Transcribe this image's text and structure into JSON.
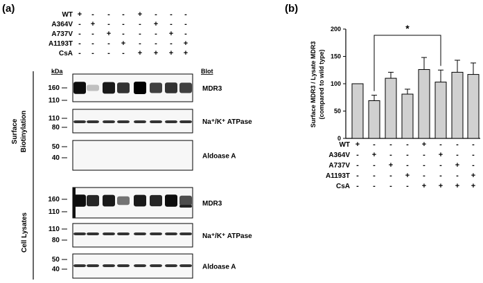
{
  "panel_a": {
    "label": "(a)",
    "treatment_rows": [
      {
        "name": "WT",
        "signs": [
          "+",
          "-",
          "-",
          "-",
          "+",
          "-",
          "-",
          "-"
        ]
      },
      {
        "name": "A364V",
        "signs": [
          "-",
          "+",
          "-",
          "-",
          "-",
          "+",
          "-",
          "-"
        ]
      },
      {
        "name": "A737V",
        "signs": [
          "-",
          "-",
          "+",
          "-",
          "-",
          "-",
          "+",
          "-"
        ]
      },
      {
        "name": "A1193T",
        "signs": [
          "-",
          "-",
          "-",
          "+",
          "-",
          "-",
          "-",
          "+"
        ]
      },
      {
        "name": "CsA",
        "signs": [
          "-",
          "-",
          "-",
          "-",
          "+",
          "+",
          "+",
          "+"
        ]
      }
    ],
    "kda_header": "kDa",
    "blot_header": "Blot",
    "group_surface": "Surface Biotinylation",
    "group_surface_line1": "Surface",
    "group_surface_line2": "Biotinylation",
    "group_lysates": "Cell Lysates",
    "blots": [
      {
        "label": "MDR3",
        "markers": [
          "160",
          "110"
        ],
        "intensities": [
          0.95,
          0.25,
          0.9,
          0.8,
          1.0,
          0.75,
          0.8,
          0.75
        ]
      },
      {
        "label": "Na⁺/K⁺ ATPase",
        "markers": [
          "110",
          "80"
        ],
        "intensities": [
          0.8,
          0.8,
          0.8,
          0.8,
          0.8,
          0.8,
          0.8,
          0.8
        ]
      },
      {
        "label": "Aldoase A",
        "markers": [
          "50",
          "40"
        ],
        "intensities": [
          0,
          0,
          0,
          0,
          0,
          0,
          0,
          0
        ]
      },
      {
        "label": "MDR3",
        "markers": [
          "160",
          "110"
        ],
        "intensities": [
          0.95,
          0.85,
          0.9,
          0.55,
          0.9,
          0.85,
          0.95,
          0.7
        ]
      },
      {
        "label": "Na⁺/K⁺ ATPase",
        "markers": [
          "110",
          "80"
        ],
        "intensities": [
          0.8,
          0.8,
          0.8,
          0.8,
          0.8,
          0.8,
          0.8,
          0.8
        ]
      },
      {
        "label": "Aldoase A",
        "markers": [
          "50",
          "40"
        ],
        "intensities": [
          0.8,
          0.8,
          0.8,
          0.8,
          0.8,
          0.8,
          0.8,
          0.8
        ]
      }
    ]
  },
  "panel_b": {
    "label": "(b)",
    "significance_marker": "*"
  },
  "chart_data": {
    "type": "bar",
    "title": "",
    "ylabel": "Surface MDR3 / Lysate MDR3 (compared to wild type)",
    "ylabel_line1": "Surface MDR3 / Lysate MDR3",
    "ylabel_line2": "(compared to wild type)",
    "ylim": [
      0,
      200
    ],
    "yticks": [
      0,
      50,
      100,
      150,
      200
    ],
    "categories": [
      "WT",
      "A364V",
      "A737V",
      "A1193T",
      "WT + CsA",
      "A364V + CsA",
      "A737V + CsA",
      "A1193T + CsA"
    ],
    "values": [
      100,
      69,
      110,
      81,
      126,
      103,
      121,
      117
    ],
    "errors": [
      0,
      10,
      11,
      9,
      22,
      22,
      22,
      21
    ],
    "bar_color": "#d0d0d0",
    "grid": false,
    "significance": [
      {
        "from": 1,
        "to": 5,
        "label": "*"
      }
    ],
    "treatment_rows": [
      {
        "name": "WT",
        "signs": [
          "+",
          "-",
          "-",
          "-",
          "+",
          "-",
          "-",
          "-"
        ]
      },
      {
        "name": "A364V",
        "signs": [
          "-",
          "+",
          "-",
          "-",
          "-",
          "+",
          "-",
          "-"
        ]
      },
      {
        "name": "A737V",
        "signs": [
          "-",
          "-",
          "+",
          "-",
          "-",
          "-",
          "+",
          "-"
        ]
      },
      {
        "name": "A1193T",
        "signs": [
          "-",
          "-",
          "-",
          "+",
          "-",
          "-",
          "-",
          "+"
        ]
      },
      {
        "name": "CsA",
        "signs": [
          "-",
          "-",
          "-",
          "-",
          "+",
          "+",
          "+",
          "+"
        ]
      }
    ]
  }
}
